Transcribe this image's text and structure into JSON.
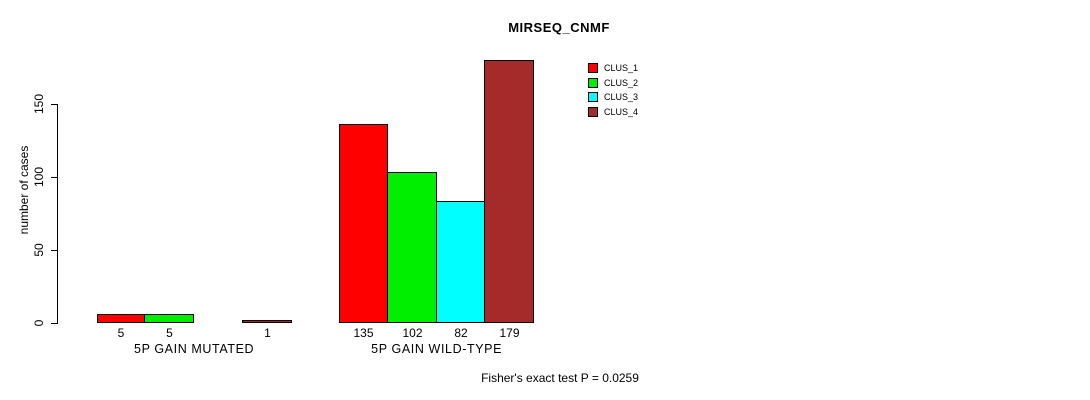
{
  "chart_data": {
    "type": "bar",
    "title": "MIRSEQ_CNMF",
    "xlabel": "",
    "ylabel": "number of cases",
    "y_ticks": [
      0,
      50,
      100,
      150
    ],
    "ylim": [
      0,
      179
    ],
    "grid": false,
    "legend_position": "top-right",
    "categories": [
      "5P GAIN MUTATED",
      "5P GAIN WILD-TYPE"
    ],
    "series": [
      {
        "name": "CLUS_1",
        "color": "#ff0000",
        "values": [
          5,
          135
        ]
      },
      {
        "name": "CLUS_2",
        "color": "#00ee00",
        "values": [
          5,
          102
        ]
      },
      {
        "name": "CLUS_3",
        "color": "#00ffff",
        "values": [
          0,
          82
        ]
      },
      {
        "name": "CLUS_4",
        "color": "#a52a2a",
        "values": [
          1,
          179
        ]
      }
    ],
    "bar_value_labels": [
      [
        "5",
        "5",
        "",
        "1"
      ],
      [
        "135",
        "102",
        "82",
        "179"
      ]
    ],
    "annotation": "Fisher's exact test P = 0.0259"
  }
}
